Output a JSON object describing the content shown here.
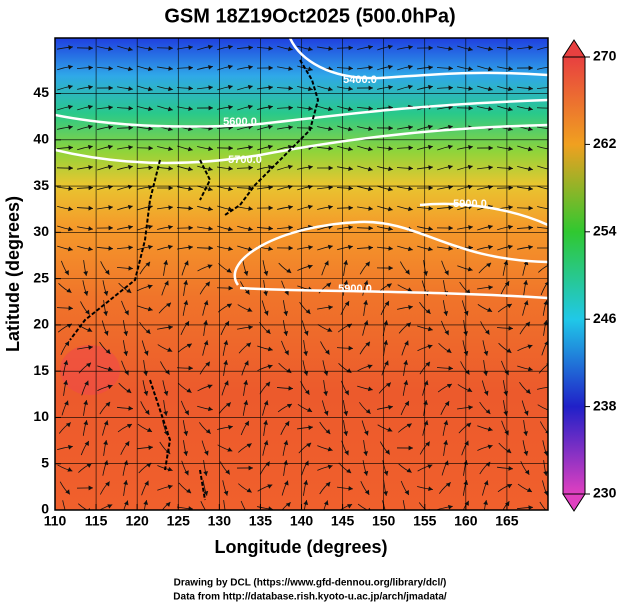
{
  "title": "GSM 18Z19Oct2025 (500.0hPa)",
  "x_axis": {
    "label": "Longitude (degrees)",
    "lim": [
      110,
      170
    ],
    "ticks": [
      110,
      115,
      120,
      125,
      130,
      135,
      140,
      145,
      150,
      155,
      160,
      165
    ]
  },
  "y_axis": {
    "label": "Latitude  (degrees)",
    "lim": [
      0,
      51
    ],
    "ticks": [
      0,
      5,
      10,
      15,
      20,
      25,
      30,
      35,
      40,
      45
    ]
  },
  "colorbar": {
    "lim": [
      230,
      270
    ],
    "ticks": [
      230,
      238,
      246,
      254,
      262,
      270
    ]
  },
  "contour_labels": [
    {
      "value": 5400,
      "label": "5400.0"
    },
    {
      "value": 5600,
      "label": "5600.0"
    },
    {
      "value": 5700,
      "label": "5700.0"
    },
    {
      "value": 5900,
      "label": "5900.0"
    },
    {
      "value": 5900,
      "label": "5900.0"
    }
  ],
  "footer": [
    "Drawing by DCL (https://www.gfd-dennou.org/library/dcl/)",
    "Data from http://database.rish.kyoto-u.ac.jp/arch/jmadata/"
  ]
}
